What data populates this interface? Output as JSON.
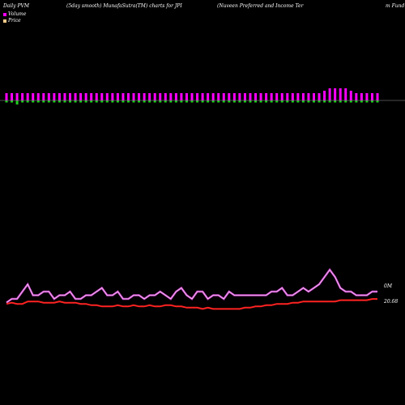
{
  "header": {
    "left_title": "Daily PVM",
    "mid_title": "(5day smooth) MunafaSutra(TM) charts for JPI",
    "right_title": "(Nuveen Preferred and Income   Ter",
    "far_right_title": "m Fund"
  },
  "legend": [
    {
      "label": "Volume",
      "color": "#ff00ff"
    },
    {
      "label": "Price",
      "color": "#ffcc88"
    }
  ],
  "chart_data": {
    "type": "line",
    "title": "Daily PVM (5day smooth) MunafaSutra(TM) charts for JPI",
    "volume_bars": {
      "baseline": 0,
      "values": [
        3,
        3,
        3,
        3,
        3,
        3,
        3,
        3,
        3,
        3,
        3,
        3,
        3,
        3,
        3,
        3,
        3,
        3,
        3,
        3,
        3,
        3,
        3,
        3,
        3,
        3,
        3,
        3,
        3,
        3,
        3,
        3,
        3,
        3,
        3,
        3,
        3,
        3,
        3,
        3,
        3,
        3,
        3,
        3,
        3,
        3,
        3,
        3,
        3,
        3,
        3,
        3,
        3,
        3,
        3,
        3,
        3,
        3,
        3,
        3,
        4,
        5,
        5,
        5,
        5,
        4,
        3,
        3,
        3,
        3,
        3
      ],
      "secondary": [
        -1,
        -1,
        -2,
        -1,
        -1,
        -1,
        -1,
        -1,
        -1,
        -1,
        -1,
        -1,
        -1,
        -1,
        -1,
        -1,
        -1,
        -1,
        -1,
        -1,
        -1,
        -1,
        -1,
        -1,
        -1,
        -1,
        -1,
        -1,
        -1,
        -1,
        -1,
        -1,
        -1,
        -1,
        -1,
        -1,
        -1,
        -1,
        -1,
        -1,
        -1,
        -1,
        -1,
        -1,
        -1,
        -1,
        -1,
        -1,
        -1,
        -1,
        -1,
        -1,
        -1,
        -1,
        -1,
        -1,
        -1,
        -1,
        -1,
        -1,
        -1,
        -1,
        -1,
        -1,
        -1,
        -1,
        -1,
        -1,
        -1,
        -1,
        -1
      ]
    },
    "series": [
      {
        "name": "Volume",
        "color": "#cc44cc",
        "values": [
          1,
          2,
          2,
          4,
          6,
          3,
          3,
          4,
          4,
          2,
          3,
          3,
          4,
          2,
          2,
          3,
          3,
          4,
          5,
          3,
          3,
          4,
          2,
          2,
          3,
          3,
          2,
          3,
          3,
          4,
          3,
          2,
          4,
          5,
          3,
          2,
          4,
          4,
          2,
          3,
          3,
          2,
          4,
          3,
          3,
          3,
          3,
          3,
          3,
          3,
          4,
          4,
          5,
          3,
          3,
          4,
          5,
          4,
          5,
          6,
          8,
          10,
          8,
          5,
          4,
          4,
          3,
          3,
          3,
          4,
          4
        ]
      },
      {
        "name": "Price",
        "color": "#ff2222",
        "values": [
          20.2,
          20.3,
          20.2,
          20.2,
          20.4,
          20.4,
          20.4,
          20.3,
          20.3,
          20.3,
          20.4,
          20.3,
          20.3,
          20.3,
          20.2,
          20.2,
          20.1,
          20.1,
          20.0,
          20.0,
          20.0,
          20.1,
          20.0,
          20.0,
          20.1,
          20.0,
          20.0,
          20.1,
          20.0,
          20.0,
          20.1,
          20.1,
          20.0,
          20.0,
          19.9,
          19.9,
          19.9,
          19.8,
          19.9,
          19.8,
          19.8,
          19.8,
          19.8,
          19.8,
          19.8,
          19.9,
          19.9,
          20.0,
          20.0,
          20.1,
          20.1,
          20.2,
          20.2,
          20.2,
          20.3,
          20.3,
          20.4,
          20.4,
          20.4,
          20.4,
          20.4,
          20.4,
          20.4,
          20.5,
          20.5,
          20.5,
          20.5,
          20.5,
          20.5,
          20.6,
          20.6
        ]
      }
    ],
    "y_labels": {
      "volume_right": "0M",
      "price_right": "20.68"
    }
  }
}
